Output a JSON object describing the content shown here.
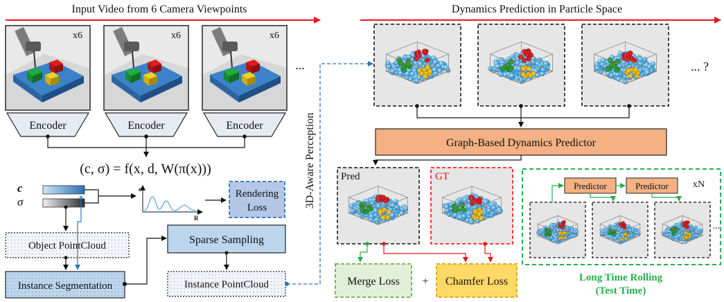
{
  "headers": {
    "left": "Input Video from 6 Camera Viewpoints",
    "right": "Dynamics Prediction in Particle Space"
  },
  "views": {
    "multiplier": "x6",
    "ellipsis": "...",
    "encoder_label": "Encoder"
  },
  "nerf": {
    "formula": "(c, σ) = f(x, d, W(π(x)))",
    "c_label": "c",
    "sigma_label": "σ",
    "plot_y": "c",
    "plot_x": "R",
    "rendering_loss_line1": "Rendering",
    "rendering_loss_line2": "Loss"
  },
  "pipeline": {
    "object_pointcloud": "Object PointCloud",
    "instance_segmentation": "Instance Segmentation",
    "sparse_sampling": "Sparse Sampling",
    "instance_pointcloud": "Instance PointCloud",
    "perception": "3D-Aware Perception"
  },
  "dynamics": {
    "ellipsis_q": "... ?",
    "predictor": "Graph-Based Dynamics Predictor",
    "pred_label": "Pred",
    "gt_label": "GT",
    "merge_loss": "Merge Loss",
    "plus": "+",
    "chamfer_loss": "Chamfer Loss"
  },
  "rolling": {
    "predictor1": "Predictor",
    "predictor2": "Predictor",
    "multiplier": "xN",
    "ellipsis": "...",
    "title_line1": "Long Time Rolling",
    "title_line2": "(Test Time)"
  },
  "colors": {
    "red_arrow": "#e31a1c",
    "encoder_fill": "#e6eaf2",
    "blue_box": "#bcd6ee",
    "orange_box": "#f4b183",
    "merge_fill": "#e2efd9",
    "chamfer_fill": "#ffd966",
    "green": "#22b14c",
    "gt_red": "#ff0000",
    "particle": "#4fb8ec"
  }
}
